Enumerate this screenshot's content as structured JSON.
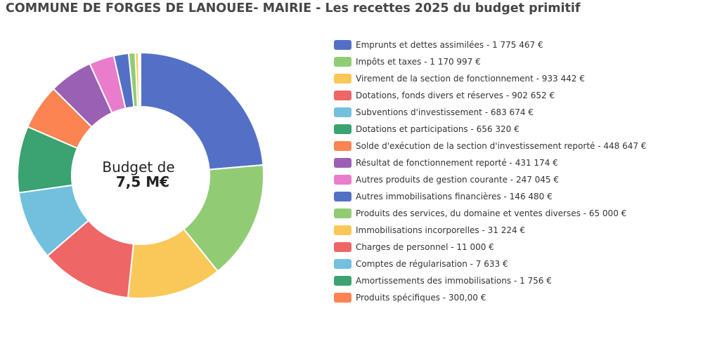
{
  "title": "COMMUNE DE FORGES DE LANOUEE- MAIRIE - Les recettes 2025 du budget primitif",
  "center": {
    "line1": "Budget de",
    "line2": "7,5 M€"
  },
  "chart_data": {
    "type": "pie",
    "donut": true,
    "legend_position": "right",
    "slices": [
      {
        "label": "Emprunts et dettes assimilées - 1 775 467 €",
        "value": 1775467,
        "color": "#5470c6"
      },
      {
        "label": "Impôts et taxes - 1 170 997 €",
        "value": 1170997,
        "color": "#91cc75"
      },
      {
        "label": "Virement de la section de fonctionnement - 933 442 €",
        "value": 933442,
        "color": "#fac858"
      },
      {
        "label": "Dotations, fonds divers et réserves - 902 652 €",
        "value": 902652,
        "color": "#ee6666"
      },
      {
        "label": "Subventions d'investissement - 683 674 €",
        "value": 683674,
        "color": "#73c0de"
      },
      {
        "label": "Dotations et participations - 656 320 €",
        "value": 656320,
        "color": "#3ba272"
      },
      {
        "label": "Solde d'exécution de la section d'investissement reporté - 448 647 €",
        "value": 448647,
        "color": "#fc8452"
      },
      {
        "label": "Résultat de fonctionnement reporté - 431 174 €",
        "value": 431174,
        "color": "#9a60b4"
      },
      {
        "label": "Autres produits de gestion courante - 247 045 €",
        "value": 247045,
        "color": "#ea7ccc"
      },
      {
        "label": "Autres immobilisations financières - 146 480 €",
        "value": 146480,
        "color": "#5470c6"
      },
      {
        "label": "Produits des services, du domaine et ventes diverses - 65 000 €",
        "value": 65000,
        "color": "#91cc75"
      },
      {
        "label": "Immobilisations incorporelles - 31 224 €",
        "value": 31224,
        "color": "#fac858"
      },
      {
        "label": "Charges de personnel - 11 000 €",
        "value": 11000,
        "color": "#ee6666"
      },
      {
        "label": "Comptes de régularisation - 7 633 €",
        "value": 7633,
        "color": "#73c0de"
      },
      {
        "label": "Amortissements des immobilisations - 1 756 €",
        "value": 1756,
        "color": "#3ba272"
      },
      {
        "label": "Produits spécifiques - 300,00 €",
        "value": 300,
        "color": "#fc8452"
      }
    ]
  }
}
